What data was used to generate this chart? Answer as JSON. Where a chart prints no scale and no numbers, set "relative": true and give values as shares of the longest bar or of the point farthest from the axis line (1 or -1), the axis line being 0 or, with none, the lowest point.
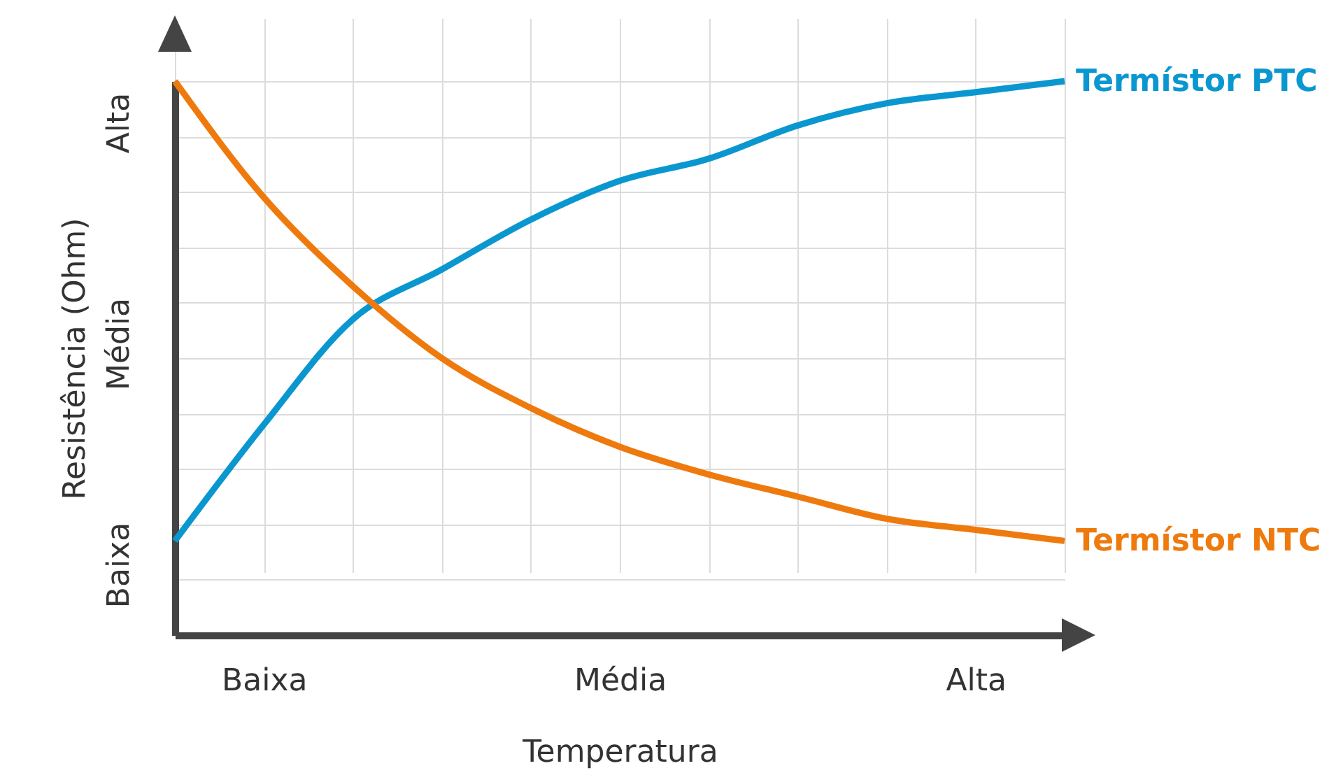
{
  "chart_data": {
    "type": "line",
    "xlabel": "Temperatura",
    "ylabel": "Resistência (Ohm)",
    "relative": true,
    "categories": [
      null,
      "Baixa",
      null,
      null,
      null,
      "Média",
      null,
      null,
      null,
      "Alta",
      null
    ],
    "series": [
      {
        "name": "Termístor PTC",
        "color": "#0a97d0",
        "values": [
          0.17,
          0.38,
          0.57,
          0.66,
          0.75,
          0.82,
          0.86,
          0.92,
          0.96,
          0.98,
          1.0
        ]
      },
      {
        "name": "Termístor NTC",
        "color": "#ee7a0e",
        "values": [
          1.0,
          0.79,
          0.63,
          0.5,
          0.41,
          0.34,
          0.29,
          0.25,
          0.21,
          0.19,
          0.17
        ]
      }
    ],
    "annotations": [
      "Baixa",
      "Média",
      "Alta"
    ],
    "grid": true
  }
}
